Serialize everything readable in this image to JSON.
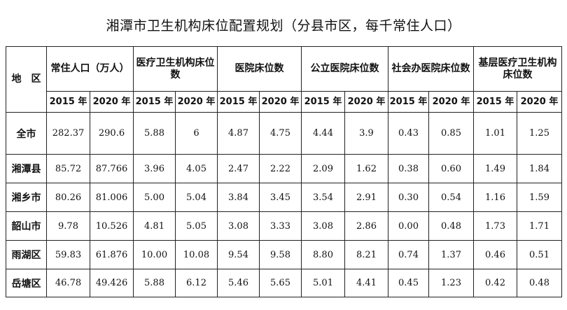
{
  "title": "湘潭市卫生机构床位配置规划（分县市区，每千常住人口）",
  "headers": {
    "region": "地　区",
    "groups": [
      "常住人口（万人）",
      "医疗卫生机构床位数",
      "医院床位数",
      "公立医院床位数",
      "社会办医院床位数",
      "基层医疗卫生机构床位数"
    ],
    "years": [
      "2015 年",
      "2020 年"
    ]
  },
  "rows": [
    {
      "region": "全市",
      "values": [
        "282.37",
        "290.6",
        "5.88",
        "6",
        "4.87",
        "4.75",
        "4.44",
        "3.9",
        "0.43",
        "0.85",
        "1.01",
        "1.25"
      ]
    },
    {
      "region": "湘潭县",
      "values": [
        "85.72",
        "87.766",
        "3.96",
        "4.05",
        "2.47",
        "2.22",
        "2.09",
        "1.62",
        "0.38",
        "0.60",
        "1.49",
        "1.84"
      ]
    },
    {
      "region": "湘乡市",
      "values": [
        "80.26",
        "81.006",
        "5.00",
        "5.04",
        "3.84",
        "3.45",
        "3.54",
        "2.91",
        "0.30",
        "0.54",
        "1.16",
        "1.59"
      ]
    },
    {
      "region": "韶山市",
      "values": [
        "9.78",
        "10.526",
        "4.81",
        "5.05",
        "3.08",
        "3.33",
        "3.08",
        "2.86",
        "0.00",
        "0.48",
        "1.73",
        "1.71"
      ]
    },
    {
      "region": "雨湖区",
      "values": [
        "59.83",
        "61.876",
        "10.00",
        "10.08",
        "9.54",
        "9.58",
        "8.80",
        "8.21",
        "0.74",
        "1.37",
        "0.46",
        "0.51"
      ]
    },
    {
      "region": "岳塘区",
      "values": [
        "46.78",
        "49.426",
        "5.88",
        "6.12",
        "5.46",
        "5.65",
        "5.01",
        "4.41",
        "0.45",
        "1.23",
        "0.42",
        "0.48"
      ]
    }
  ]
}
